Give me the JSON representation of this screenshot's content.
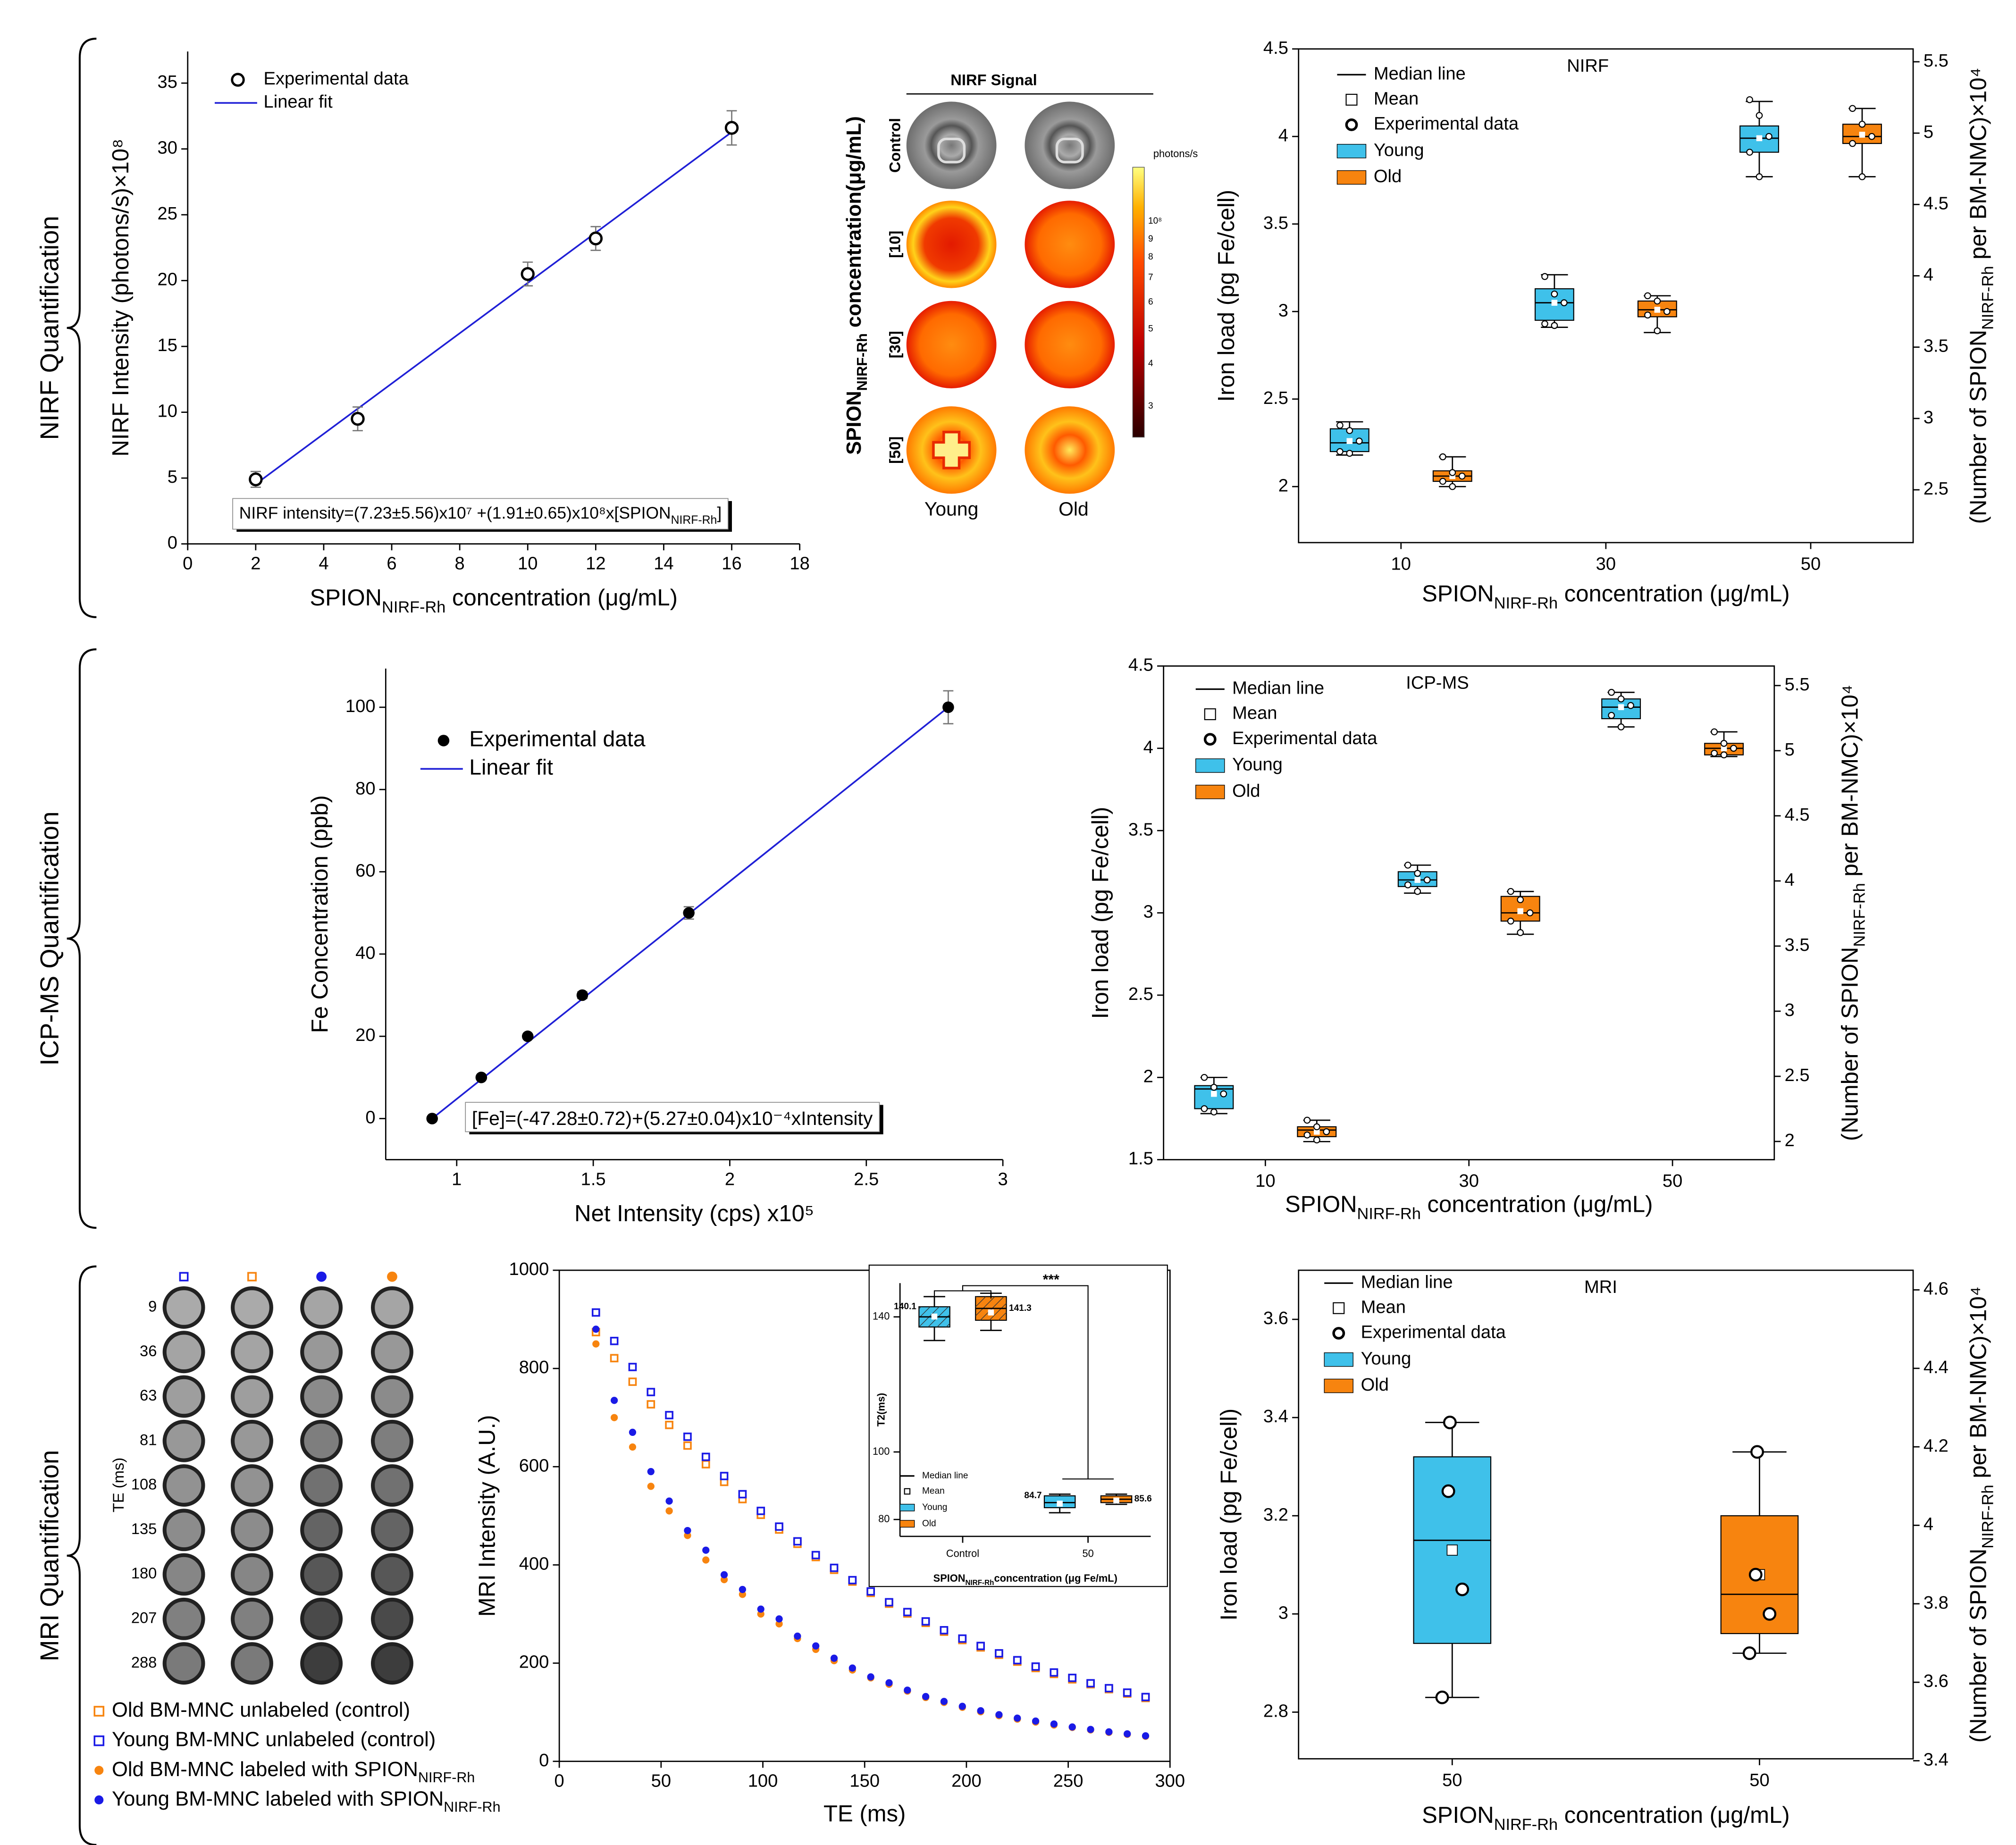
{
  "section_labels": [
    "NIRF Quantification",
    "ICP-MS Quantification",
    "MRI Quantification"
  ],
  "nirf_image": {
    "title": "NIRF Signal",
    "rows": [
      "Control",
      "[10]",
      "[30]",
      "[50]"
    ],
    "columns": [
      "Young",
      "Old"
    ],
    "colorbar_unit": "photons/s",
    "colorbar_labels": [
      "10⁸",
      "9",
      "8",
      "7",
      "6",
      "5",
      "4",
      "3"
    ],
    "ylabel": [
      "SPION",
      "NIRF-Rh",
      " concentration(μg/mL)"
    ]
  },
  "mri_image": {
    "te_label": "TE (ms)",
    "te": [
      9,
      36,
      63,
      81,
      108,
      135,
      180,
      207,
      288
    ]
  },
  "chart_data": [
    {
      "type": "scatter",
      "xlabel": [
        "SPION",
        "NIRF-Rh",
        " concentration (μg/mL)"
      ],
      "ylabel": "NIRF Intensity (photons/s)×10⁸",
      "xlim": [
        0,
        18
      ],
      "xticks": [
        0,
        2,
        4,
        6,
        8,
        10,
        12,
        14,
        16,
        18
      ],
      "ylim": [
        0,
        37.4
      ],
      "yticks": [
        0,
        5,
        10,
        15,
        20,
        25,
        30,
        35
      ],
      "series": [
        {
          "name": "Experimental data",
          "color": "#000000",
          "marker": "open-circle",
          "x": [
            2,
            5,
            10,
            12,
            16
          ],
          "values": [
            4.9,
            9.5,
            20.5,
            23.2,
            31.6
          ],
          "errors": [
            0.6,
            0.9,
            0.9,
            0.9,
            1.3
          ]
        }
      ],
      "fit": {
        "name": "Linear fit",
        "color": "#1f1fd6",
        "x": [
          2,
          16
        ],
        "values": [
          4.54,
          31.28
        ]
      },
      "equation": [
        "NIRF intensity=(7.23±5.56)x10⁷ +(1.91±0.65)x10⁸x[SPION",
        "NIRF-Rh",
        "]"
      ]
    },
    {
      "type": "box",
      "title": "NIRF",
      "xlabel": [
        "SPION",
        "NIRF-Rh",
        " concentration (μg/mL)"
      ],
      "ylabel": "Iron load (pg Fe/cell)",
      "y2label": [
        "(Number of SPION",
        "NIRF-Rh",
        " per BM-NMC)×10⁴"
      ],
      "categories": [
        "10",
        "30",
        "50"
      ],
      "ylim": [
        1.68,
        4.5
      ],
      "yticks": [
        2,
        2.5,
        3,
        3.5,
        4,
        4.5
      ],
      "y2lim": [
        2.13,
        5.59
      ],
      "y2ticks": [
        2.5,
        3,
        3.5,
        4,
        4.5,
        5,
        5.5
      ],
      "legend_extra": [
        "Median line",
        "Mean",
        "Experimental data"
      ],
      "series": [
        {
          "name": "Young",
          "color": "#3fc1ea",
          "boxes": [
            {
              "min": 2.18,
              "q1": 2.2,
              "median": 2.25,
              "q3": 2.33,
              "max": 2.37,
              "mean": 2.26,
              "points": [
                2.35,
                2.32,
                2.26,
                2.2,
                2.19
              ]
            },
            {
              "min": 2.91,
              "q1": 2.95,
              "median": 3.05,
              "q3": 3.13,
              "max": 3.21,
              "mean": 3.05,
              "points": [
                3.2,
                3.1,
                3.05,
                2.93,
                2.92
              ]
            },
            {
              "min": 3.77,
              "q1": 3.91,
              "median": 3.99,
              "q3": 4.06,
              "max": 4.2,
              "mean": 3.99,
              "points": [
                4.21,
                4.12,
                4.0,
                3.91,
                3.77
              ]
            }
          ]
        },
        {
          "name": "Old",
          "color": "#f7840f",
          "boxes": [
            {
              "min": 2.0,
              "q1": 2.03,
              "median": 2.06,
              "q3": 2.09,
              "max": 2.17,
              "mean": 2.06,
              "points": [
                2.17,
                2.08,
                2.06,
                2.03,
                2.0
              ]
            },
            {
              "min": 2.88,
              "q1": 2.97,
              "median": 3.01,
              "q3": 3.06,
              "max": 3.09,
              "mean": 3.01,
              "points": [
                3.09,
                3.06,
                3.0,
                2.98,
                2.89
              ]
            },
            {
              "min": 3.77,
              "q1": 3.96,
              "median": 4.0,
              "q3": 4.07,
              "max": 4.16,
              "mean": 4.01,
              "points": [
                4.16,
                4.07,
                4.0,
                3.96,
                3.77
              ]
            }
          ]
        }
      ]
    },
    {
      "type": "scatter",
      "xlabel": "Net Intensity (cps) x10⁵",
      "ylabel": "Fe Concentration (ppb)",
      "xlim": [
        0.74,
        3
      ],
      "xticks": [
        1,
        1.5,
        2,
        2.5,
        3
      ],
      "ylim": [
        -10,
        109.4
      ],
      "yticks": [
        0,
        20,
        40,
        60,
        80,
        100
      ],
      "series": [
        {
          "name": "Experimental data",
          "color": "#000000",
          "marker": "filled-circle",
          "x": [
            0.91,
            1.09,
            1.26,
            1.46,
            1.85,
            2.8
          ],
          "values": [
            0,
            10,
            20,
            30,
            50,
            100
          ],
          "errors": [
            0.3,
            0.5,
            0.5,
            0.8,
            1.5,
            4
          ]
        }
      ],
      "fit": {
        "name": "Linear fit",
        "color": "#1f1fd6",
        "x": [
          0.91,
          2.8
        ],
        "values": [
          0,
          100
        ]
      },
      "equation": "[Fe]=(-47.28±0.72)+(5.27±0.04)x10⁻⁴xIntensity"
    },
    {
      "type": "box",
      "title": "ICP-MS",
      "xlabel": [
        "SPION",
        "NIRF-Rh",
        " concentration (μg/mL)"
      ],
      "ylabel": "Iron load (pg Fe/cell)",
      "y2label": [
        "(Number of SPION",
        "NIRF-Rh",
        " per BM-NMC)×10⁴"
      ],
      "categories": [
        "10",
        "30",
        "50"
      ],
      "ylim": [
        1.5,
        4.5
      ],
      "yticks": [
        1.5,
        2,
        2.5,
        3,
        3.5,
        4,
        4.5
      ],
      "y2lim": [
        1.86,
        5.65
      ],
      "y2ticks": [
        2,
        2.5,
        3,
        3.5,
        4,
        4.5,
        5,
        5.5
      ],
      "legend_extra": [
        "Median line",
        "Mean",
        "Experimental data"
      ],
      "series": [
        {
          "name": "Young",
          "color": "#3fc1ea",
          "boxes": [
            {
              "min": 1.78,
              "q1": 1.81,
              "median": 1.93,
              "q3": 1.95,
              "max": 2.0,
              "mean": 1.9,
              "points": [
                2.0,
                1.94,
                1.9,
                1.81,
                1.79
              ]
            },
            {
              "min": 3.12,
              "q1": 3.16,
              "median": 3.2,
              "q3": 3.25,
              "max": 3.29,
              "mean": 3.2,
              "points": [
                3.29,
                3.24,
                3.2,
                3.17,
                3.13
              ]
            },
            {
              "min": 4.13,
              "q1": 4.18,
              "median": 4.25,
              "q3": 4.3,
              "max": 4.34,
              "mean": 4.25,
              "points": [
                4.34,
                4.3,
                4.26,
                4.2,
                4.13
              ]
            }
          ]
        },
        {
          "name": "Old",
          "color": "#f7840f",
          "boxes": [
            {
              "min": 1.61,
              "q1": 1.64,
              "median": 1.68,
              "q3": 1.7,
              "max": 1.74,
              "mean": 1.67,
              "points": [
                1.74,
                1.7,
                1.67,
                1.65,
                1.62
              ]
            },
            {
              "min": 2.87,
              "q1": 2.95,
              "median": 3.0,
              "q3": 3.1,
              "max": 3.13,
              "mean": 3.01,
              "points": [
                3.13,
                3.08,
                3.0,
                2.95,
                2.88
              ]
            },
            {
              "min": 3.95,
              "q1": 3.96,
              "median": 4.0,
              "q3": 4.03,
              "max": 4.1,
              "mean": 4.0,
              "points": [
                4.1,
                4.03,
                4.0,
                3.97,
                3.96
              ]
            }
          ]
        }
      ]
    },
    {
      "type": "scatter",
      "xlabel": "TE (ms)",
      "ylabel": "MRI Intensity (A.U.)",
      "xlim": [
        0,
        300
      ],
      "xticks": [
        0,
        50,
        100,
        150,
        200,
        250,
        300
      ],
      "ylim": [
        0,
        1000
      ],
      "yticks": [
        0,
        200,
        400,
        600,
        800,
        1000
      ],
      "x": [
        18,
        27,
        36,
        45,
        54,
        63,
        72,
        81,
        90,
        99,
        108,
        117,
        126,
        135,
        144,
        153,
        162,
        171,
        180,
        189,
        198,
        207,
        216,
        225,
        234,
        243,
        252,
        261,
        270,
        279,
        288
      ],
      "series": [
        {
          "name": "Old BM-MNC unlabeled (control)",
          "color": "#f7840f",
          "marker": "open-square",
          "values": [
            874,
            821,
            773,
            727,
            685,
            643,
            605,
            569,
            534,
            502,
            472,
            443,
            416,
            390,
            366,
            343,
            321,
            301,
            282,
            264,
            247,
            232,
            217,
            203,
            190,
            178,
            167,
            157,
            147,
            138,
            129
          ]
        },
        {
          "name": "Young BM-MNC unlabeled (control)",
          "color": "#1a1ae6",
          "marker": "open-square",
          "values": [
            914,
            856,
            803,
            752,
            705,
            661,
            620,
            581,
            544,
            510,
            478,
            448,
            420,
            394,
            369,
            346,
            324,
            304,
            285,
            267,
            250,
            235,
            220,
            206,
            193,
            181,
            170,
            159,
            149,
            140,
            131
          ]
        },
        {
          "name": [
            "Old BM-MNC labeled with SPION",
            "NIRF-Rh"
          ],
          "color": "#f7840f",
          "marker": "filled-circle",
          "values": [
            850,
            700,
            640,
            560,
            510,
            460,
            410,
            370,
            340,
            300,
            280,
            250,
            228,
            205,
            186,
            170,
            157,
            143,
            130,
            120,
            110,
            101,
            93,
            86,
            80,
            74,
            69,
            64,
            59,
            55,
            51
          ]
        },
        {
          "name": [
            "Young BM-MNC labeled with SPION",
            "NIRF-Rh"
          ],
          "color": "#1a1ae6",
          "marker": "filled-circle",
          "values": [
            880,
            735,
            670,
            590,
            530,
            470,
            430,
            380,
            350,
            310,
            290,
            255,
            235,
            210,
            190,
            172,
            160,
            145,
            132,
            122,
            112,
            103,
            95,
            88,
            82,
            76,
            70,
            65,
            60,
            56,
            52
          ]
        }
      ]
    },
    {
      "type": "box",
      "xlabel": [
        "SPION",
        "NIRF-Rh",
        "concentration (μg Fe/mL)"
      ],
      "ylabel": "T2(ms)",
      "categories": [
        "Control",
        "50"
      ],
      "ylim": [
        75,
        150
      ],
      "yticks": [
        80,
        100,
        140
      ],
      "legend_extra": [
        "Median line",
        "Mean"
      ],
      "annotation": "***",
      "series": [
        {
          "name": "Young",
          "color": "#3fc1ea",
          "boxes": [
            {
              "min": 133,
              "q1": 137,
              "median": 140,
              "q3": 143,
              "max": 146,
              "mean": 140.1
            },
            {
              "min": 82,
              "q1": 83.5,
              "median": 85,
              "q3": 87,
              "max": 87.5,
              "mean": 84.7
            }
          ]
        },
        {
          "name": "Old",
          "color": "#f7840f",
          "boxes": [
            {
              "min": 136,
              "q1": 139,
              "median": 142.5,
              "q3": 146,
              "max": 147,
              "mean": 141.3
            },
            {
              "min": 84.5,
              "q1": 85,
              "median": 86,
              "q3": 87,
              "max": 87.5,
              "mean": 85.6
            }
          ]
        }
      ]
    },
    {
      "type": "box",
      "title": "MRI",
      "xlabel": [
        "SPION",
        "NIRF-Rh",
        " concentration (μg/mL)"
      ],
      "ylabel": "Iron load (pg Fe/cell)",
      "y2label": [
        "(Number of SPION",
        "NIRF-Rh",
        " per BM-NMC)×10⁴"
      ],
      "categories": [
        "50",
        "50"
      ],
      "ylim": [
        2.705,
        3.7
      ],
      "yticks": [
        2.8,
        3,
        3.2,
        3.4,
        3.6
      ],
      "y2lim": [
        3.405,
        4.65
      ],
      "y2ticks": [
        3.4,
        3.6,
        3.8,
        4,
        4.2,
        4.4,
        4.6
      ],
      "legend_extra": [
        "Median line",
        "Mean",
        "Experimental data"
      ],
      "series": [
        {
          "name": "Young",
          "color": "#3fc1ea",
          "boxes": [
            {
              "min": 2.83,
              "q1": 2.94,
              "median": 3.15,
              "q3": 3.32,
              "max": 3.39,
              "mean": 3.13,
              "points": [
                3.39,
                3.25,
                3.05,
                2.83
              ]
            },
            null
          ]
        },
        {
          "name": "Old",
          "color": "#f7840f",
          "boxes": [
            null,
            {
              "min": 2.92,
              "q1": 2.96,
              "median": 3.04,
              "q3": 3.2,
              "max": 3.33,
              "mean": 3.08,
              "points": [
                3.33,
                3.08,
                3.0,
                2.92
              ]
            }
          ]
        }
      ]
    }
  ]
}
